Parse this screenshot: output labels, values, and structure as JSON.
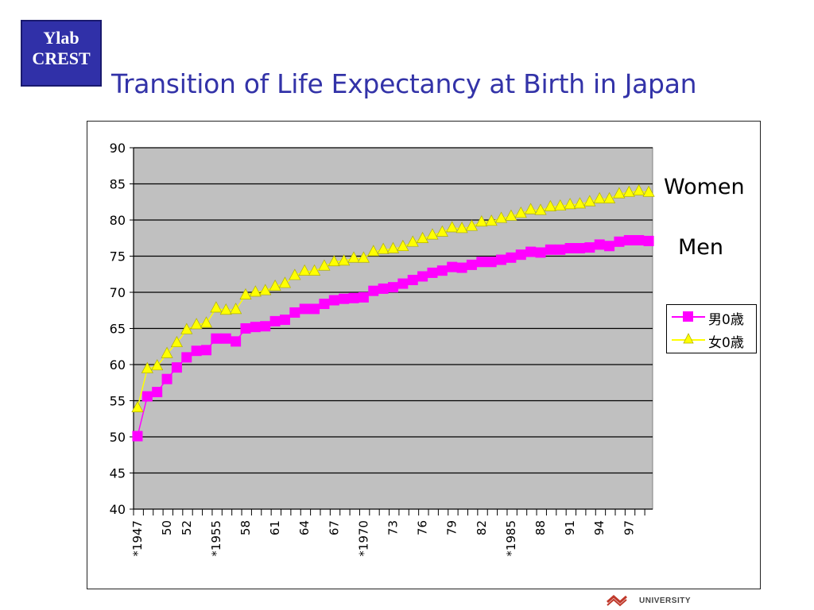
{
  "logo": {
    "line1": "Ylab",
    "line2": "CREST"
  },
  "title": "Transition of Life Expectancy at Birth in Japan",
  "annotations": {
    "women": "Women",
    "men": "Men"
  },
  "footer": {
    "university": "UNIVERSITY",
    "slide_number": ""
  },
  "colors": {
    "plot_bg": "#c0c0c0",
    "men": "#ff00ff",
    "women": "#ffff00",
    "women_marker_edge": "#b0b000",
    "title": "#3333a8",
    "logo_bg": "#3030a8"
  },
  "chart_data": {
    "type": "line",
    "title": "",
    "xlabel": "",
    "ylabel": "",
    "ylim": [
      40,
      90
    ],
    "yticks": [
      40,
      45,
      50,
      55,
      60,
      65,
      70,
      75,
      80,
      85,
      90
    ],
    "grid": true,
    "legend_position": "right",
    "x": [
      1947,
      1948,
      1949,
      1950,
      1951,
      1952,
      1953,
      1954,
      1955,
      1956,
      1957,
      1958,
      1959,
      1960,
      1961,
      1962,
      1963,
      1964,
      1965,
      1966,
      1967,
      1968,
      1969,
      1970,
      1971,
      1972,
      1973,
      1974,
      1975,
      1976,
      1977,
      1978,
      1979,
      1980,
      1981,
      1982,
      1983,
      1984,
      1985,
      1986,
      1987,
      1988,
      1989,
      1990,
      1991,
      1992,
      1993,
      1994,
      1995,
      1996,
      1997,
      1998,
      1999
    ],
    "x_tick_labels": [
      {
        "year": 1947,
        "label": "*1947"
      },
      {
        "year": 1950,
        "label": "50"
      },
      {
        "year": 1952,
        "label": "52"
      },
      {
        "year": 1955,
        "label": "*1955"
      },
      {
        "year": 1958,
        "label": "58"
      },
      {
        "year": 1961,
        "label": "61"
      },
      {
        "year": 1964,
        "label": "64"
      },
      {
        "year": 1967,
        "label": "67"
      },
      {
        "year": 1970,
        "label": "*1970"
      },
      {
        "year": 1973,
        "label": "73"
      },
      {
        "year": 1976,
        "label": "76"
      },
      {
        "year": 1979,
        "label": "79"
      },
      {
        "year": 1982,
        "label": "82"
      },
      {
        "year": 1985,
        "label": "*1985"
      },
      {
        "year": 1988,
        "label": "88"
      },
      {
        "year": 1991,
        "label": "91"
      },
      {
        "year": 1994,
        "label": "94"
      },
      {
        "year": 1997,
        "label": "97"
      }
    ],
    "series": [
      {
        "name": "男0歳",
        "marker": "square",
        "color": "#ff00ff",
        "values": [
          50.1,
          55.6,
          56.2,
          58.0,
          59.6,
          61.0,
          61.9,
          62.0,
          63.6,
          63.6,
          63.2,
          65.0,
          65.2,
          65.3,
          66.0,
          66.2,
          67.2,
          67.7,
          67.7,
          68.4,
          68.9,
          69.1,
          69.2,
          69.3,
          70.2,
          70.5,
          70.7,
          71.2,
          71.7,
          72.2,
          72.7,
          73.0,
          73.5,
          73.4,
          73.8,
          74.2,
          74.2,
          74.5,
          74.8,
          75.2,
          75.6,
          75.5,
          75.9,
          75.9,
          76.1,
          76.1,
          76.2,
          76.6,
          76.4,
          77.0,
          77.2,
          77.2,
          77.1
        ]
      },
      {
        "name": "女0歳",
        "marker": "triangle",
        "color": "#ffff00",
        "values": [
          54.0,
          59.4,
          59.8,
          61.5,
          63.0,
          64.8,
          65.5,
          65.7,
          67.8,
          67.5,
          67.6,
          69.6,
          70.0,
          70.2,
          70.8,
          71.2,
          72.3,
          72.9,
          72.9,
          73.6,
          74.2,
          74.3,
          74.7,
          74.7,
          75.6,
          75.9,
          76.0,
          76.3,
          76.9,
          77.4,
          77.9,
          78.3,
          78.9,
          78.8,
          79.1,
          79.7,
          79.8,
          80.2,
          80.5,
          80.9,
          81.4,
          81.3,
          81.8,
          81.9,
          82.1,
          82.2,
          82.5,
          82.9,
          82.9,
          83.6,
          83.8,
          84.0,
          83.8
        ]
      }
    ]
  }
}
